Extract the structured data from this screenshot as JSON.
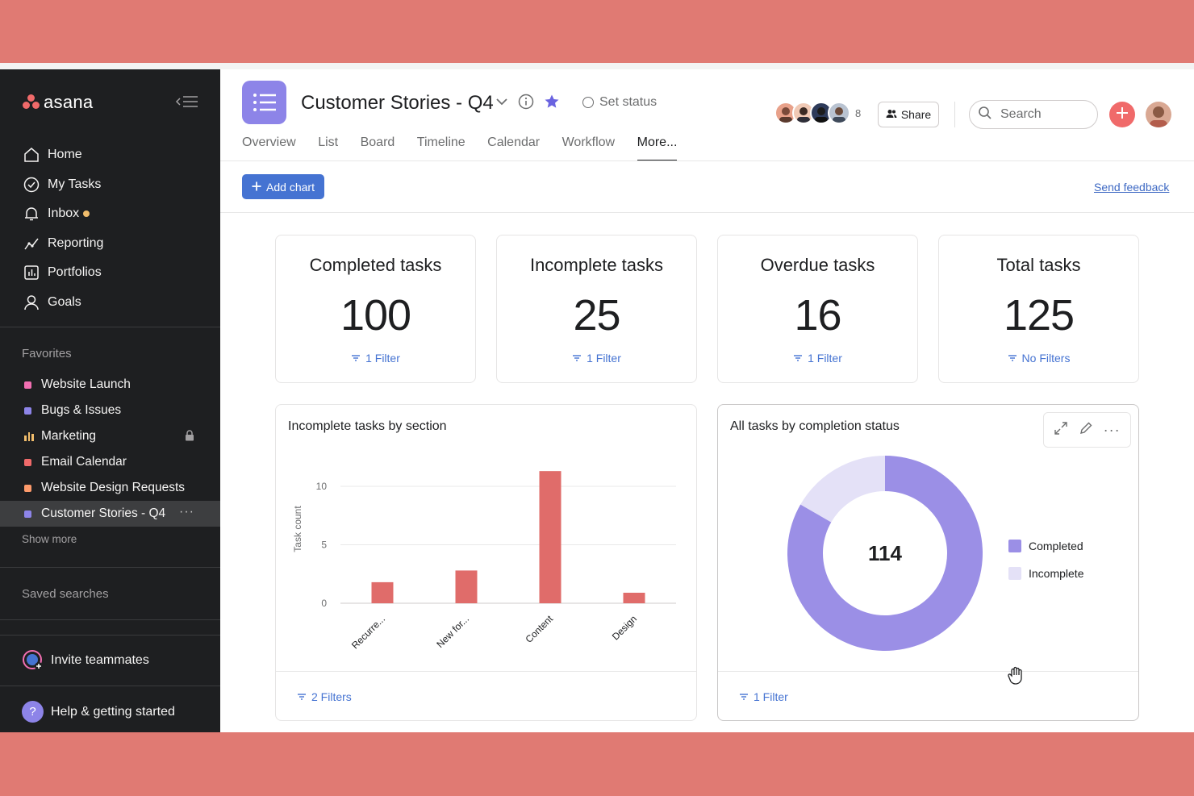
{
  "app": {
    "logo_text": "asana"
  },
  "sidebar": {
    "nav": [
      {
        "label": "Home",
        "icon": "home-icon"
      },
      {
        "label": "My Tasks",
        "icon": "check-circle-icon"
      },
      {
        "label": "Inbox",
        "icon": "bell-icon"
      },
      {
        "label": "Reporting",
        "icon": "reporting-icon"
      },
      {
        "label": "Portfolios",
        "icon": "portfolio-icon"
      },
      {
        "label": "Goals",
        "icon": "person-icon"
      }
    ],
    "favorites_title": "Favorites",
    "favorites": [
      {
        "label": "Website Launch",
        "color": "#f26fb2"
      },
      {
        "label": "Bugs & Issues",
        "color": "#8d84e8"
      },
      {
        "label": "Marketing",
        "color": "#f1bd6c"
      },
      {
        "label": "Email Calendar",
        "color": "#f06a6a"
      },
      {
        "label": "Website Design Requests",
        "color": "#fd9a6b"
      },
      {
        "label": "Customer Stories - Q4",
        "color": "#8d84e8"
      }
    ],
    "show_more": "Show more",
    "saved_searches": "Saved searches",
    "invite": "Invite teammates",
    "help": "Help & getting started"
  },
  "header": {
    "project_title": "Customer Stories - Q4",
    "set_status": "Set status",
    "member_count": "8",
    "share_label": "Share",
    "search_placeholder": "Search",
    "tabs": [
      "Overview",
      "List",
      "Board",
      "Timeline",
      "Calendar",
      "Workflow",
      "More..."
    ],
    "active_tab": "More..."
  },
  "toolbar": {
    "add_chart": "Add chart",
    "send_feedback": "Send feedback"
  },
  "stats": [
    {
      "title": "Completed tasks",
      "value": "100",
      "filter": "1 Filter"
    },
    {
      "title": "Incomplete tasks",
      "value": "25",
      "filter": "1 Filter"
    },
    {
      "title": "Overdue tasks",
      "value": "16",
      "filter": "1 Filter"
    },
    {
      "title": "Total tasks",
      "value": "125",
      "filter": "No Filters"
    }
  ],
  "bar_chart_card": {
    "title": "Incomplete tasks by section",
    "filter": "2 Filters"
  },
  "donut_chart_card": {
    "title": "All tasks by completion status",
    "center_value": "114",
    "filter": "1 Filter"
  },
  "colors": {
    "accent_blue": "#4573d2",
    "bar_red": "#e06c6a",
    "donut_completed": "#9b8fe6",
    "donut_incomplete": "#e4e1f7",
    "sidebar_bg": "#1e1f21"
  },
  "chart_data": [
    {
      "type": "bar",
      "title": "Incomplete tasks by section",
      "categories": [
        "Recurre...",
        "New for...",
        "Content",
        "Design"
      ],
      "values": [
        1.8,
        2.8,
        11.3,
        0.9
      ],
      "ylabel": "Task count",
      "yticks": [
        0,
        5,
        10
      ],
      "ylim": [
        0,
        11.5
      ],
      "grid": true
    },
    {
      "type": "pie",
      "title": "All tasks by completion status",
      "categories": [
        "Completed",
        "Incomplete"
      ],
      "values": [
        95,
        19
      ],
      "center_label": "114",
      "legend": "right"
    }
  ]
}
